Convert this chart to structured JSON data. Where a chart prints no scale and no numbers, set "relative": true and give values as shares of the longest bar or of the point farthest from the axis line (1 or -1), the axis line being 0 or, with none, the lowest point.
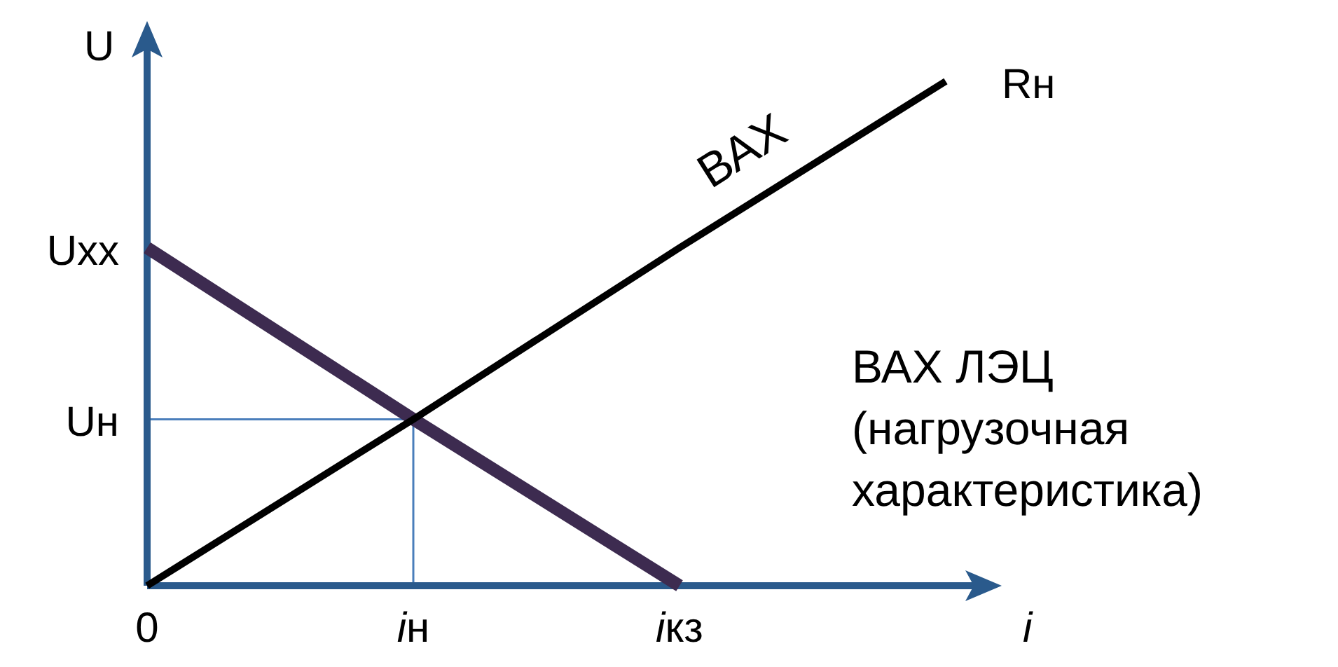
{
  "chart_data": {
    "type": "line",
    "relative": true,
    "xlabel": "i",
    "ylabel": "U",
    "categories": [
      "0",
      "iн",
      "iкз",
      null
    ],
    "series": [
      {
        "name": "ВАХ ЛЭЦ (нагрузочная характеристика)",
        "color": "#3d2b50",
        "values": [
          0.67,
          0.33,
          0,
          null
        ]
      },
      {
        "name": "Rн",
        "color": "#000000",
        "values": [
          0,
          0.33,
          0.67,
          1
        ]
      }
    ],
    "ref_lines": [
      {
        "axis": "x",
        "value": "iн",
        "color": "#4a7ebb"
      },
      {
        "axis": "y",
        "value": 0.33,
        "label": "Uн",
        "color": "#4a7ebb"
      }
    ],
    "annotations": [
      "Uхх",
      "ВАХ"
    ],
    "line_style": "solid",
    "marker": "none",
    "legend": false,
    "grid": false
  }
}
